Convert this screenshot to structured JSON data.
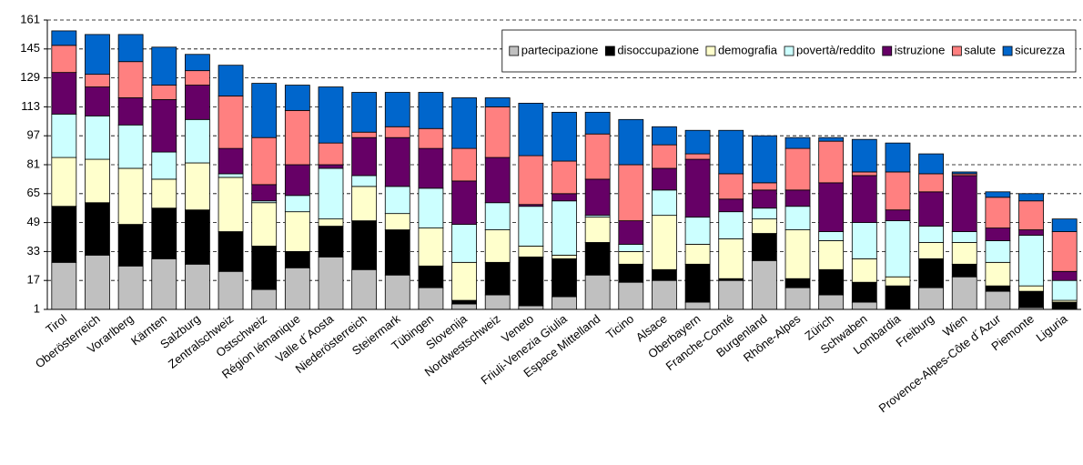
{
  "chart_data": {
    "type": "stacked_bar",
    "categories": [
      "Tirol",
      "Oberösterreich",
      "Vorarlberg",
      "Kärnten",
      "Salzburg",
      "Zentralschweiz",
      "Ostschweiz",
      "Région lémanique",
      "Valle d´Aosta",
      "Niederösterreich",
      "Steiermark",
      "Tübingen",
      "Slovenija",
      "Nordwestschweiz",
      "Veneto",
      "Friuli-Venezia Giulia",
      "Espace Mittelland",
      "Ticino",
      "Alsace",
      "Oberbayern",
      "Franche-Comté",
      "Burgenland",
      "Rhône-Alpes",
      "Zürich",
      "Schwaben",
      "Lombardia",
      "Freiburg",
      "Wien",
      "Provence-Alpes-Côte d´Azur",
      "Piemonte",
      "Liguria"
    ],
    "series": [
      {
        "name": "partecipazione",
        "color": "#c0c0c0",
        "values": [
          26,
          30,
          24,
          28,
          25,
          21,
          11,
          23,
          29,
          22,
          19,
          12,
          3,
          8,
          2,
          7,
          19,
          15,
          16,
          4,
          16,
          27,
          12,
          8,
          4,
          0,
          12,
          18,
          10,
          1,
          0
        ]
      },
      {
        "name": "disoccupazione",
        "color": "#000000",
        "values": [
          31,
          29,
          23,
          28,
          30,
          22,
          24,
          9,
          17,
          27,
          25,
          12,
          2,
          18,
          27,
          21,
          18,
          10,
          6,
          21,
          1,
          15,
          5,
          14,
          11,
          13,
          16,
          7,
          3,
          9,
          4
        ]
      },
      {
        "name": "demografia",
        "color": "#ffffcc",
        "values": [
          27,
          24,
          31,
          16,
          26,
          30,
          24,
          22,
          4,
          19,
          9,
          21,
          21,
          18,
          6,
          2,
          14,
          7,
          30,
          11,
          22,
          8,
          27,
          16,
          13,
          5,
          9,
          12,
          13,
          3,
          1
        ]
      },
      {
        "name": "povertà/reddito",
        "color": "#ccffff",
        "values": [
          24,
          24,
          24,
          15,
          24,
          2,
          1,
          9,
          28,
          6,
          15,
          22,
          21,
          15,
          22,
          30,
          1,
          4,
          14,
          15,
          15,
          6,
          13,
          5,
          20,
          31,
          9,
          6,
          12,
          28,
          11
        ]
      },
      {
        "name": "istruzione",
        "color": "#660066",
        "values": [
          23,
          16,
          15,
          29,
          19,
          14,
          9,
          17,
          2,
          21,
          27,
          22,
          24,
          25,
          1,
          4,
          20,
          13,
          12,
          32,
          7,
          10,
          9,
          27,
          26,
          6,
          19,
          31,
          7,
          3,
          5
        ]
      },
      {
        "name": "salute",
        "color": "#ff8080",
        "values": [
          15,
          7,
          20,
          8,
          8,
          29,
          26,
          30,
          12,
          3,
          6,
          11,
          18,
          28,
          27,
          18,
          25,
          31,
          13,
          3,
          14,
          4,
          23,
          23,
          2,
          21,
          10,
          1,
          17,
          16,
          22
        ]
      },
      {
        "name": "sicurezza",
        "color": "#0066cc",
        "values": [
          8,
          22,
          15,
          21,
          9,
          17,
          30,
          14,
          31,
          22,
          19,
          20,
          28,
          5,
          29,
          27,
          12,
          25,
          10,
          13,
          24,
          26,
          6,
          2,
          18,
          16,
          11,
          1,
          3,
          4,
          7
        ]
      }
    ],
    "ylim": [
      1,
      161
    ],
    "yticks": [
      1,
      17,
      33,
      49,
      65,
      81,
      97,
      113,
      129,
      145,
      161
    ],
    "grid": true,
    "legend": "upper right"
  }
}
